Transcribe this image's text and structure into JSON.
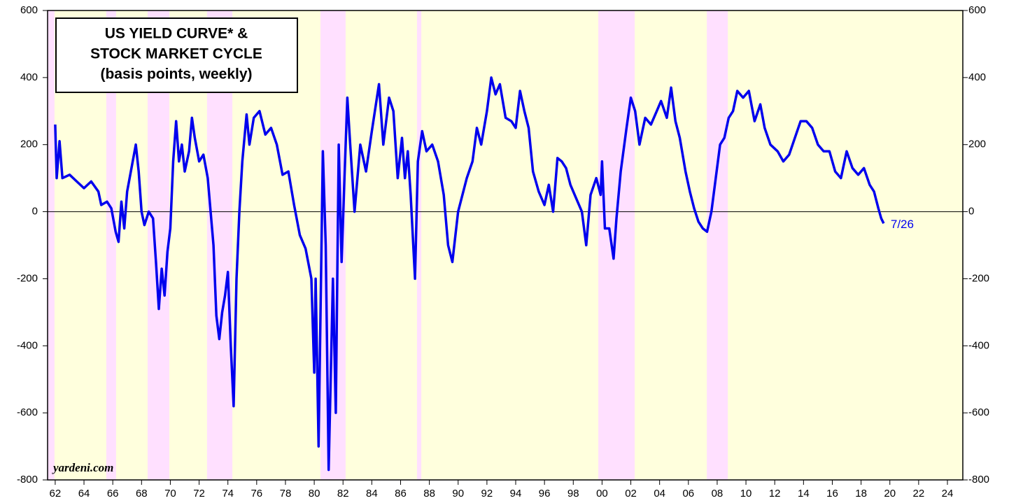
{
  "chart_data": {
    "type": "line",
    "title_lines": [
      "US YIELD CURVE* &",
      "STOCK MARKET CYCLE",
      "(basis points, weekly)"
    ],
    "annotation": "yardeni.com",
    "end_label": "7/26",
    "xlim": [
      1961.47,
      2025.07
    ],
    "ylim": [
      -800,
      600
    ],
    "y2lim": [
      -800,
      600
    ],
    "xticks": [
      {
        "value": 1962,
        "label": "62"
      },
      {
        "value": 1964,
        "label": "64"
      },
      {
        "value": 1966,
        "label": "66"
      },
      {
        "value": 1968,
        "label": "68"
      },
      {
        "value": 1970,
        "label": "70"
      },
      {
        "value": 1972,
        "label": "72"
      },
      {
        "value": 1974,
        "label": "74"
      },
      {
        "value": 1976,
        "label": "76"
      },
      {
        "value": 1978,
        "label": "78"
      },
      {
        "value": 1980,
        "label": "80"
      },
      {
        "value": 1982,
        "label": "82"
      },
      {
        "value": 1984,
        "label": "84"
      },
      {
        "value": 1986,
        "label": "86"
      },
      {
        "value": 1988,
        "label": "88"
      },
      {
        "value": 1990,
        "label": "90"
      },
      {
        "value": 1992,
        "label": "92"
      },
      {
        "value": 1994,
        "label": "94"
      },
      {
        "value": 1996,
        "label": "96"
      },
      {
        "value": 1998,
        "label": "98"
      },
      {
        "value": 2000,
        "label": "00"
      },
      {
        "value": 2002,
        "label": "02"
      },
      {
        "value": 2004,
        "label": "04"
      },
      {
        "value": 2006,
        "label": "06"
      },
      {
        "value": 2008,
        "label": "08"
      },
      {
        "value": 2010,
        "label": "10"
      },
      {
        "value": 2012,
        "label": "12"
      },
      {
        "value": 2014,
        "label": "14"
      },
      {
        "value": 2016,
        "label": "16"
      },
      {
        "value": 2018,
        "label": "18"
      },
      {
        "value": 2020,
        "label": "20"
      },
      {
        "value": 2022,
        "label": "22"
      },
      {
        "value": 2024,
        "label": "24"
      }
    ],
    "yticks": [
      -800,
      -600,
      -400,
      -200,
      0,
      200,
      400,
      600
    ],
    "y2ticks": [
      -800,
      -600,
      -400,
      -200,
      0,
      200,
      400,
      600
    ],
    "background_color": "#ffffdd",
    "shaded_color": "#ffe0ff",
    "shaded_periods": [
      [
        1961.46,
        1961.95
      ],
      [
        1965.55,
        1966.23
      ],
      [
        1968.42,
        1969.93
      ],
      [
        1972.55,
        1974.31
      ],
      [
        1980.43,
        1982.18
      ],
      [
        1987.14,
        1987.44
      ],
      [
        1999.74,
        2002.27
      ],
      [
        2007.28,
        2008.74
      ]
    ],
    "zero_line": true,
    "series": [
      {
        "color": "#0000ee",
        "x": [
          1962.0,
          1962.1,
          1962.3,
          1962.5,
          1963.0,
          1963.5,
          1964.0,
          1964.5,
          1965.0,
          1965.2,
          1965.6,
          1965.9,
          1966.2,
          1966.4,
          1966.6,
          1966.8,
          1967.0,
          1967.3,
          1967.6,
          1967.8,
          1968.0,
          1968.2,
          1968.5,
          1968.8,
          1969.0,
          1969.2,
          1969.4,
          1969.6,
          1969.8,
          1970.0,
          1970.2,
          1970.4,
          1970.6,
          1970.8,
          1971.0,
          1971.3,
          1971.5,
          1971.7,
          1972.0,
          1972.3,
          1972.6,
          1972.8,
          1973.0,
          1973.2,
          1973.4,
          1973.6,
          1973.8,
          1974.0,
          1974.2,
          1974.4,
          1974.6,
          1974.8,
          1975.0,
          1975.3,
          1975.5,
          1975.8,
          1976.2,
          1976.6,
          1977.0,
          1977.4,
          1977.8,
          1978.2,
          1978.6,
          1979.0,
          1979.4,
          1979.8,
          1980.0,
          1980.1,
          1980.3,
          1980.6,
          1980.8,
          1981.0,
          1981.3,
          1981.5,
          1981.7,
          1981.9,
          1982.1,
          1982.3,
          1982.5,
          1982.8,
          1983.2,
          1983.6,
          1984.0,
          1984.5,
          1984.8,
          1985.2,
          1985.5,
          1985.8,
          1986.1,
          1986.3,
          1986.5,
          1986.7,
          1987.0,
          1987.2,
          1987.5,
          1987.8,
          1988.2,
          1988.6,
          1989.0,
          1989.3,
          1989.6,
          1990.0,
          1990.3,
          1990.6,
          1991.0,
          1991.3,
          1991.6,
          1992.0,
          1992.3,
          1992.6,
          1992.9,
          1993.3,
          1993.7,
          1994.0,
          1994.3,
          1994.6,
          1994.9,
          1995.2,
          1995.6,
          1996.0,
          1996.3,
          1996.6,
          1996.9,
          1997.2,
          1997.5,
          1997.8,
          1998.2,
          1998.6,
          1998.9,
          1999.2,
          1999.6,
          1999.9,
          2000.0,
          2000.2,
          2000.5,
          2000.8,
          2001.0,
          2001.3,
          2001.7,
          2002.0,
          2002.3,
          2002.6,
          2003.0,
          2003.4,
          2003.8,
          2004.1,
          2004.5,
          2004.8,
          2005.1,
          2005.4,
          2005.8,
          2006.1,
          2006.4,
          2006.7,
          2007.0,
          2007.3,
          2007.6,
          2007.9,
          2008.2,
          2008.5,
          2008.8,
          2009.1,
          2009.4,
          2009.8,
          2010.2,
          2010.6,
          2011.0,
          2011.3,
          2011.7,
          2012.2,
          2012.6,
          2013.0,
          2013.4,
          2013.8,
          2014.2,
          2014.6,
          2015.0,
          2015.4,
          2015.8,
          2016.2,
          2016.6,
          2017.0,
          2017.4,
          2017.8,
          2018.2,
          2018.6,
          2018.9,
          2019.2,
          2019.4,
          2019.57
        ],
        "values": [
          260,
          100,
          210,
          100,
          110,
          90,
          70,
          90,
          60,
          20,
          30,
          10,
          -60,
          -90,
          30,
          -50,
          60,
          130,
          200,
          120,
          0,
          -40,
          0,
          -20,
          -150,
          -290,
          -170,
          -250,
          -120,
          -50,
          150,
          270,
          150,
          200,
          120,
          180,
          280,
          220,
          150,
          170,
          100,
          0,
          -100,
          -310,
          -380,
          -300,
          -250,
          -180,
          -400,
          -580,
          -200,
          0,
          150,
          290,
          200,
          280,
          300,
          230,
          250,
          200,
          110,
          120,
          20,
          -70,
          -110,
          -200,
          -480,
          -200,
          -700,
          180,
          -100,
          -770,
          -200,
          -600,
          200,
          -150,
          100,
          340,
          200,
          0,
          200,
          120,
          240,
          380,
          200,
          340,
          300,
          100,
          220,
          100,
          180,
          50,
          -200,
          150,
          240,
          180,
          200,
          150,
          50,
          -100,
          -150,
          0,
          50,
          100,
          150,
          250,
          200,
          300,
          400,
          350,
          380,
          280,
          270,
          250,
          360,
          300,
          250,
          120,
          60,
          20,
          80,
          0,
          160,
          150,
          130,
          80,
          40,
          0,
          -100,
          50,
          100,
          50,
          150,
          -50,
          -50,
          -140,
          -20,
          120,
          250,
          340,
          300,
          200,
          280,
          260,
          300,
          330,
          280,
          370,
          270,
          220,
          120,
          60,
          10,
          -30,
          -50,
          -60,
          0,
          100,
          200,
          220,
          280,
          300,
          360,
          340,
          360,
          270,
          320,
          250,
          200,
          180,
          150,
          170,
          220,
          270,
          270,
          250,
          200,
          180,
          180,
          120,
          100,
          180,
          130,
          110,
          130,
          80,
          60,
          10,
          -20,
          -35
        ]
      }
    ]
  }
}
